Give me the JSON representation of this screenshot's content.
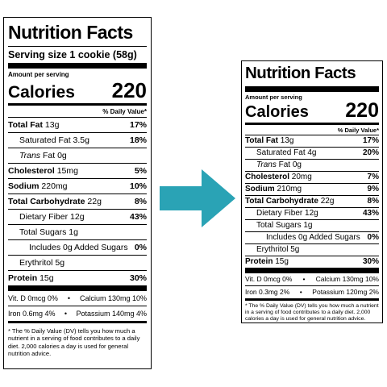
{
  "left": {
    "title": "Nutrition Facts",
    "serving": "Serving size 1 cookie (58g)",
    "amount_per_serving": "Amount per serving",
    "calories_label": "Calories",
    "calories_value": "220",
    "daily_value_header": "% Daily Value*",
    "nutrients": {
      "total_fat": {
        "label": "Total Fat",
        "amount": "13g",
        "dv": "17%"
      },
      "saturated_fat": {
        "label": "Saturated Fat",
        "amount": "3.5g",
        "dv": "18%"
      },
      "trans_fat": {
        "label": "Trans",
        "amount": "Fat 0g"
      },
      "cholesterol": {
        "label": "Cholesterol",
        "amount": "15mg",
        "dv": "5%"
      },
      "sodium": {
        "label": "Sodium",
        "amount": "220mg",
        "dv": "10%"
      },
      "total_carb": {
        "label": "Total Carbohydrate",
        "amount": "22g",
        "dv": "8%"
      },
      "dietary_fiber": {
        "label": "Dietary Fiber",
        "amount": "12g",
        "dv": "43%"
      },
      "total_sugars": {
        "label": "Total Sugars",
        "amount": "1g"
      },
      "added_sugars": {
        "label": "Includes 0g Added Sugars",
        "dv": "0%"
      },
      "erythritol": {
        "label": "Erythritol",
        "amount": "5g"
      },
      "protein": {
        "label": "Protein",
        "amount": "15g",
        "dv": "30%"
      }
    },
    "vitamins": {
      "vit_d": "Vit. D 0mcg 0%",
      "calcium": "Calcium 130mg 10%",
      "iron": "Iron 0.6mg 4%",
      "potassium": "Potassium 140mg 4%"
    },
    "footnote": "* The % Daily Value (DV) tells you how much a nutrient in a serving of food contributes to a daily diet. 2,000 calories a day is used for general nutrition advice."
  },
  "right": {
    "title": "Nutrition Facts",
    "amount_per_serving": "Amount per serving",
    "calories_label": "Calories",
    "calories_value": "220",
    "daily_value_header": "% Daily Value*",
    "nutrients": {
      "total_fat": {
        "label": "Total Fat",
        "amount": "13g",
        "dv": "17%"
      },
      "saturated_fat": {
        "label": "Saturated Fat",
        "amount": "4g",
        "dv": "20%"
      },
      "trans_fat": {
        "label": "Trans",
        "amount": "Fat 0g"
      },
      "cholesterol": {
        "label": "Cholesterol",
        "amount": "20mg",
        "dv": "7%"
      },
      "sodium": {
        "label": "Sodium",
        "amount": "210mg",
        "dv": "9%"
      },
      "total_carb": {
        "label": "Total Carbohydrate",
        "amount": "22g",
        "dv": "8%"
      },
      "dietary_fiber": {
        "label": "Dietary Fiber",
        "amount": "12g",
        "dv": "43%"
      },
      "total_sugars": {
        "label": "Total Sugars",
        "amount": "1g"
      },
      "added_sugars": {
        "label": "Includes 0g Added Sugars",
        "dv": "0%"
      },
      "erythritol": {
        "label": "Erythritol",
        "amount": "5g"
      },
      "protein": {
        "label": "Protein",
        "amount": "15g",
        "dv": "30%"
      }
    },
    "vitamins": {
      "vit_d": "Vit. D 0mcg 0%",
      "calcium": "Calcium 130mg 10%",
      "iron": "Iron 0.3mg 2%",
      "potassium": "Potassium 120mg 2%"
    },
    "footnote": "* The % Daily Value (DV) tells you how much a nutrient in a serving of food contributes to a daily diet. 2,000 calories a day is used for general nutrition advice."
  },
  "arrow": {
    "icon": "arrow-right-icon",
    "color": "#2aa3b5"
  }
}
